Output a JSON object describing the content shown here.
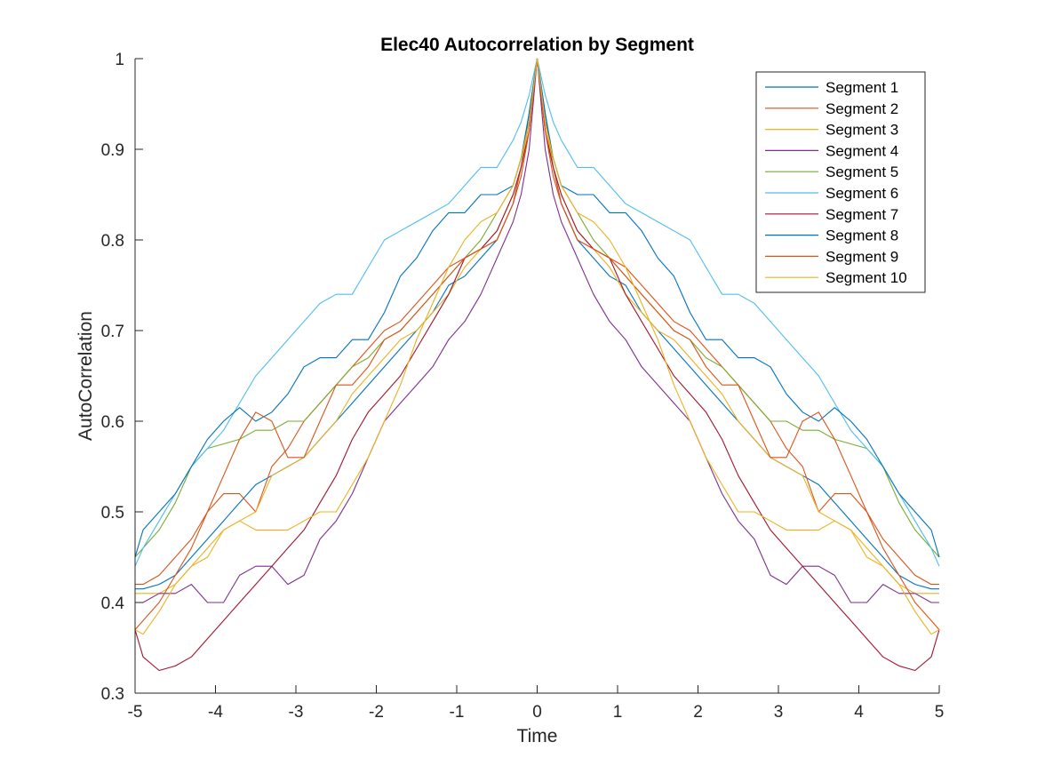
{
  "chart_data": {
    "type": "line",
    "title": "Elec40 Autocorrelation by Segment",
    "xlabel": "Time",
    "ylabel": "AutoCorrelation",
    "xlim": [
      -5,
      5
    ],
    "ylim": [
      0.3,
      1
    ],
    "xticks": [
      -5,
      -4,
      -3,
      -2,
      -1,
      0,
      1,
      2,
      3,
      4,
      5
    ],
    "yticks": [
      0.3,
      0.4,
      0.5,
      0.6,
      0.7,
      0.8,
      0.9,
      1
    ],
    "xtick_labels": [
      "-5",
      "-4",
      "-3",
      "-2",
      "-1",
      "0",
      "1",
      "2",
      "3",
      "4",
      "5"
    ],
    "ytick_labels": [
      "0.3",
      "0.4",
      "0.5",
      "0.6",
      "0.7",
      "0.8",
      "0.9",
      "1"
    ],
    "grid": false,
    "legend_position": "top-right",
    "symmetric_about_zero": true,
    "series": [
      {
        "name": "Segment 1",
        "color": "#0072BD",
        "x": [
          0,
          0.1,
          0.2,
          0.3,
          0.5,
          0.7,
          0.9,
          1.1,
          1.3,
          1.5,
          1.7,
          1.9,
          2.1,
          2.3,
          2.5,
          2.7,
          2.9,
          3.1,
          3.3,
          3.5,
          3.7,
          3.9,
          4.1,
          4.3,
          4.5,
          4.7,
          4.9,
          5.0
        ],
        "y": [
          1.0,
          0.94,
          0.88,
          0.84,
          0.8,
          0.78,
          0.76,
          0.75,
          0.72,
          0.7,
          0.68,
          0.66,
          0.64,
          0.62,
          0.6,
          0.58,
          0.56,
          0.55,
          0.54,
          0.53,
          0.51,
          0.49,
          0.47,
          0.45,
          0.43,
          0.42,
          0.415,
          0.415
        ]
      },
      {
        "name": "Segment 2",
        "color": "#D95319",
        "x": [
          0,
          0.1,
          0.2,
          0.3,
          0.5,
          0.7,
          0.9,
          1.1,
          1.3,
          1.5,
          1.7,
          1.9,
          2.1,
          2.3,
          2.5,
          2.7,
          2.9,
          3.1,
          3.3,
          3.5,
          3.7,
          3.9,
          4.1,
          4.3,
          4.5,
          4.7,
          4.9,
          5.0
        ],
        "y": [
          1.0,
          0.93,
          0.88,
          0.84,
          0.8,
          0.79,
          0.78,
          0.77,
          0.75,
          0.73,
          0.71,
          0.7,
          0.68,
          0.66,
          0.64,
          0.62,
          0.6,
          0.57,
          0.55,
          0.5,
          0.52,
          0.52,
          0.5,
          0.47,
          0.45,
          0.43,
          0.42,
          0.42
        ]
      },
      {
        "name": "Segment 3",
        "color": "#EDB120",
        "x": [
          0,
          0.1,
          0.2,
          0.3,
          0.5,
          0.7,
          0.9,
          1.1,
          1.3,
          1.5,
          1.7,
          1.9,
          2.1,
          2.3,
          2.5,
          2.7,
          2.9,
          3.1,
          3.3,
          3.5,
          3.7,
          3.9,
          4.1,
          4.3,
          4.5,
          4.7,
          4.9,
          5.0
        ],
        "y": [
          1.0,
          0.93,
          0.88,
          0.85,
          0.81,
          0.79,
          0.77,
          0.74,
          0.72,
          0.7,
          0.69,
          0.67,
          0.65,
          0.63,
          0.6,
          0.58,
          0.56,
          0.55,
          0.54,
          0.5,
          0.49,
          0.48,
          0.46,
          0.44,
          0.42,
          0.41,
          0.41,
          0.41
        ]
      },
      {
        "name": "Segment 4",
        "color": "#7E2F8E",
        "x": [
          0,
          0.1,
          0.2,
          0.3,
          0.5,
          0.7,
          0.9,
          1.1,
          1.3,
          1.5,
          1.7,
          1.9,
          2.1,
          2.3,
          2.5,
          2.7,
          2.9,
          3.1,
          3.3,
          3.5,
          3.7,
          3.9,
          4.1,
          4.3,
          4.5,
          4.7,
          4.9,
          5.0
        ],
        "y": [
          1.0,
          0.9,
          0.85,
          0.82,
          0.78,
          0.74,
          0.71,
          0.69,
          0.66,
          0.64,
          0.62,
          0.6,
          0.56,
          0.52,
          0.49,
          0.47,
          0.43,
          0.42,
          0.44,
          0.44,
          0.43,
          0.4,
          0.4,
          0.42,
          0.41,
          0.41,
          0.4,
          0.4
        ]
      },
      {
        "name": "Segment 5",
        "color": "#77AC30",
        "x": [
          0,
          0.1,
          0.2,
          0.3,
          0.5,
          0.7,
          0.9,
          1.1,
          1.3,
          1.5,
          1.7,
          1.9,
          2.1,
          2.3,
          2.5,
          2.7,
          2.9,
          3.1,
          3.3,
          3.5,
          3.7,
          3.9,
          4.1,
          4.3,
          4.5,
          4.7,
          4.9,
          5.0
        ],
        "y": [
          1.0,
          0.93,
          0.89,
          0.86,
          0.83,
          0.8,
          0.78,
          0.76,
          0.74,
          0.72,
          0.7,
          0.69,
          0.67,
          0.66,
          0.64,
          0.62,
          0.6,
          0.6,
          0.59,
          0.59,
          0.58,
          0.575,
          0.57,
          0.55,
          0.51,
          0.48,
          0.46,
          0.45
        ]
      },
      {
        "name": "Segment 6",
        "color": "#4DBEEE",
        "x": [
          0,
          0.1,
          0.2,
          0.3,
          0.5,
          0.7,
          0.9,
          1.1,
          1.3,
          1.5,
          1.7,
          1.9,
          2.1,
          2.3,
          2.5,
          2.7,
          2.9,
          3.1,
          3.3,
          3.5,
          3.7,
          3.9,
          4.1,
          4.3,
          4.5,
          4.7,
          4.9,
          5.0
        ],
        "y": [
          1.0,
          0.96,
          0.93,
          0.91,
          0.88,
          0.88,
          0.86,
          0.84,
          0.83,
          0.82,
          0.81,
          0.8,
          0.77,
          0.74,
          0.74,
          0.73,
          0.71,
          0.69,
          0.67,
          0.65,
          0.62,
          0.59,
          0.57,
          0.55,
          0.52,
          0.49,
          0.46,
          0.44
        ]
      },
      {
        "name": "Segment 7",
        "color": "#A2142F",
        "x": [
          0,
          0.1,
          0.2,
          0.3,
          0.5,
          0.7,
          0.9,
          1.1,
          1.3,
          1.5,
          1.7,
          1.9,
          2.1,
          2.3,
          2.5,
          2.7,
          2.9,
          3.1,
          3.3,
          3.5,
          3.7,
          3.9,
          4.1,
          4.3,
          4.5,
          4.7,
          4.9,
          5.0
        ],
        "y": [
          1.0,
          0.92,
          0.88,
          0.85,
          0.81,
          0.79,
          0.78,
          0.74,
          0.71,
          0.68,
          0.65,
          0.63,
          0.61,
          0.58,
          0.54,
          0.51,
          0.48,
          0.46,
          0.44,
          0.42,
          0.4,
          0.38,
          0.36,
          0.34,
          0.33,
          0.325,
          0.34,
          0.37
        ]
      },
      {
        "name": "Segment 8",
        "color": "#0072BD",
        "x": [
          0,
          0.1,
          0.2,
          0.3,
          0.5,
          0.7,
          0.9,
          1.1,
          1.3,
          1.5,
          1.7,
          1.9,
          2.1,
          2.3,
          2.5,
          2.7,
          2.9,
          3.1,
          3.3,
          3.5,
          3.7,
          3.9,
          4.1,
          4.3,
          4.5,
          4.7,
          4.9,
          5.0
        ],
        "y": [
          1.0,
          0.94,
          0.89,
          0.86,
          0.85,
          0.85,
          0.83,
          0.83,
          0.81,
          0.78,
          0.76,
          0.72,
          0.69,
          0.69,
          0.67,
          0.67,
          0.66,
          0.63,
          0.61,
          0.6,
          0.615,
          0.6,
          0.58,
          0.55,
          0.52,
          0.5,
          0.48,
          0.45
        ]
      },
      {
        "name": "Segment 9",
        "color": "#D95319",
        "x": [
          0,
          0.1,
          0.2,
          0.3,
          0.5,
          0.7,
          0.9,
          1.1,
          1.3,
          1.5,
          1.7,
          1.9,
          2.1,
          2.3,
          2.5,
          2.7,
          2.9,
          3.1,
          3.3,
          3.5,
          3.7,
          3.9,
          4.1,
          4.3,
          4.5,
          4.7,
          4.9,
          5.0
        ],
        "y": [
          1.0,
          0.92,
          0.87,
          0.84,
          0.8,
          0.79,
          0.78,
          0.76,
          0.74,
          0.72,
          0.7,
          0.69,
          0.66,
          0.64,
          0.64,
          0.6,
          0.56,
          0.56,
          0.6,
          0.61,
          0.58,
          0.54,
          0.5,
          0.46,
          0.43,
          0.4,
          0.38,
          0.37
        ]
      },
      {
        "name": "Segment 10",
        "color": "#EDB120",
        "x": [
          0,
          0.1,
          0.2,
          0.3,
          0.5,
          0.7,
          0.9,
          1.1,
          1.3,
          1.5,
          1.7,
          1.9,
          2.1,
          2.3,
          2.5,
          2.7,
          2.9,
          3.1,
          3.3,
          3.5,
          3.7,
          3.9,
          4.1,
          4.3,
          4.5,
          4.7,
          4.9,
          5.0
        ],
        "y": [
          1.0,
          0.93,
          0.89,
          0.86,
          0.83,
          0.82,
          0.8,
          0.77,
          0.73,
          0.69,
          0.64,
          0.6,
          0.56,
          0.53,
          0.5,
          0.5,
          0.49,
          0.48,
          0.48,
          0.48,
          0.49,
          0.48,
          0.45,
          0.44,
          0.42,
          0.39,
          0.365,
          0.37
        ]
      }
    ]
  }
}
